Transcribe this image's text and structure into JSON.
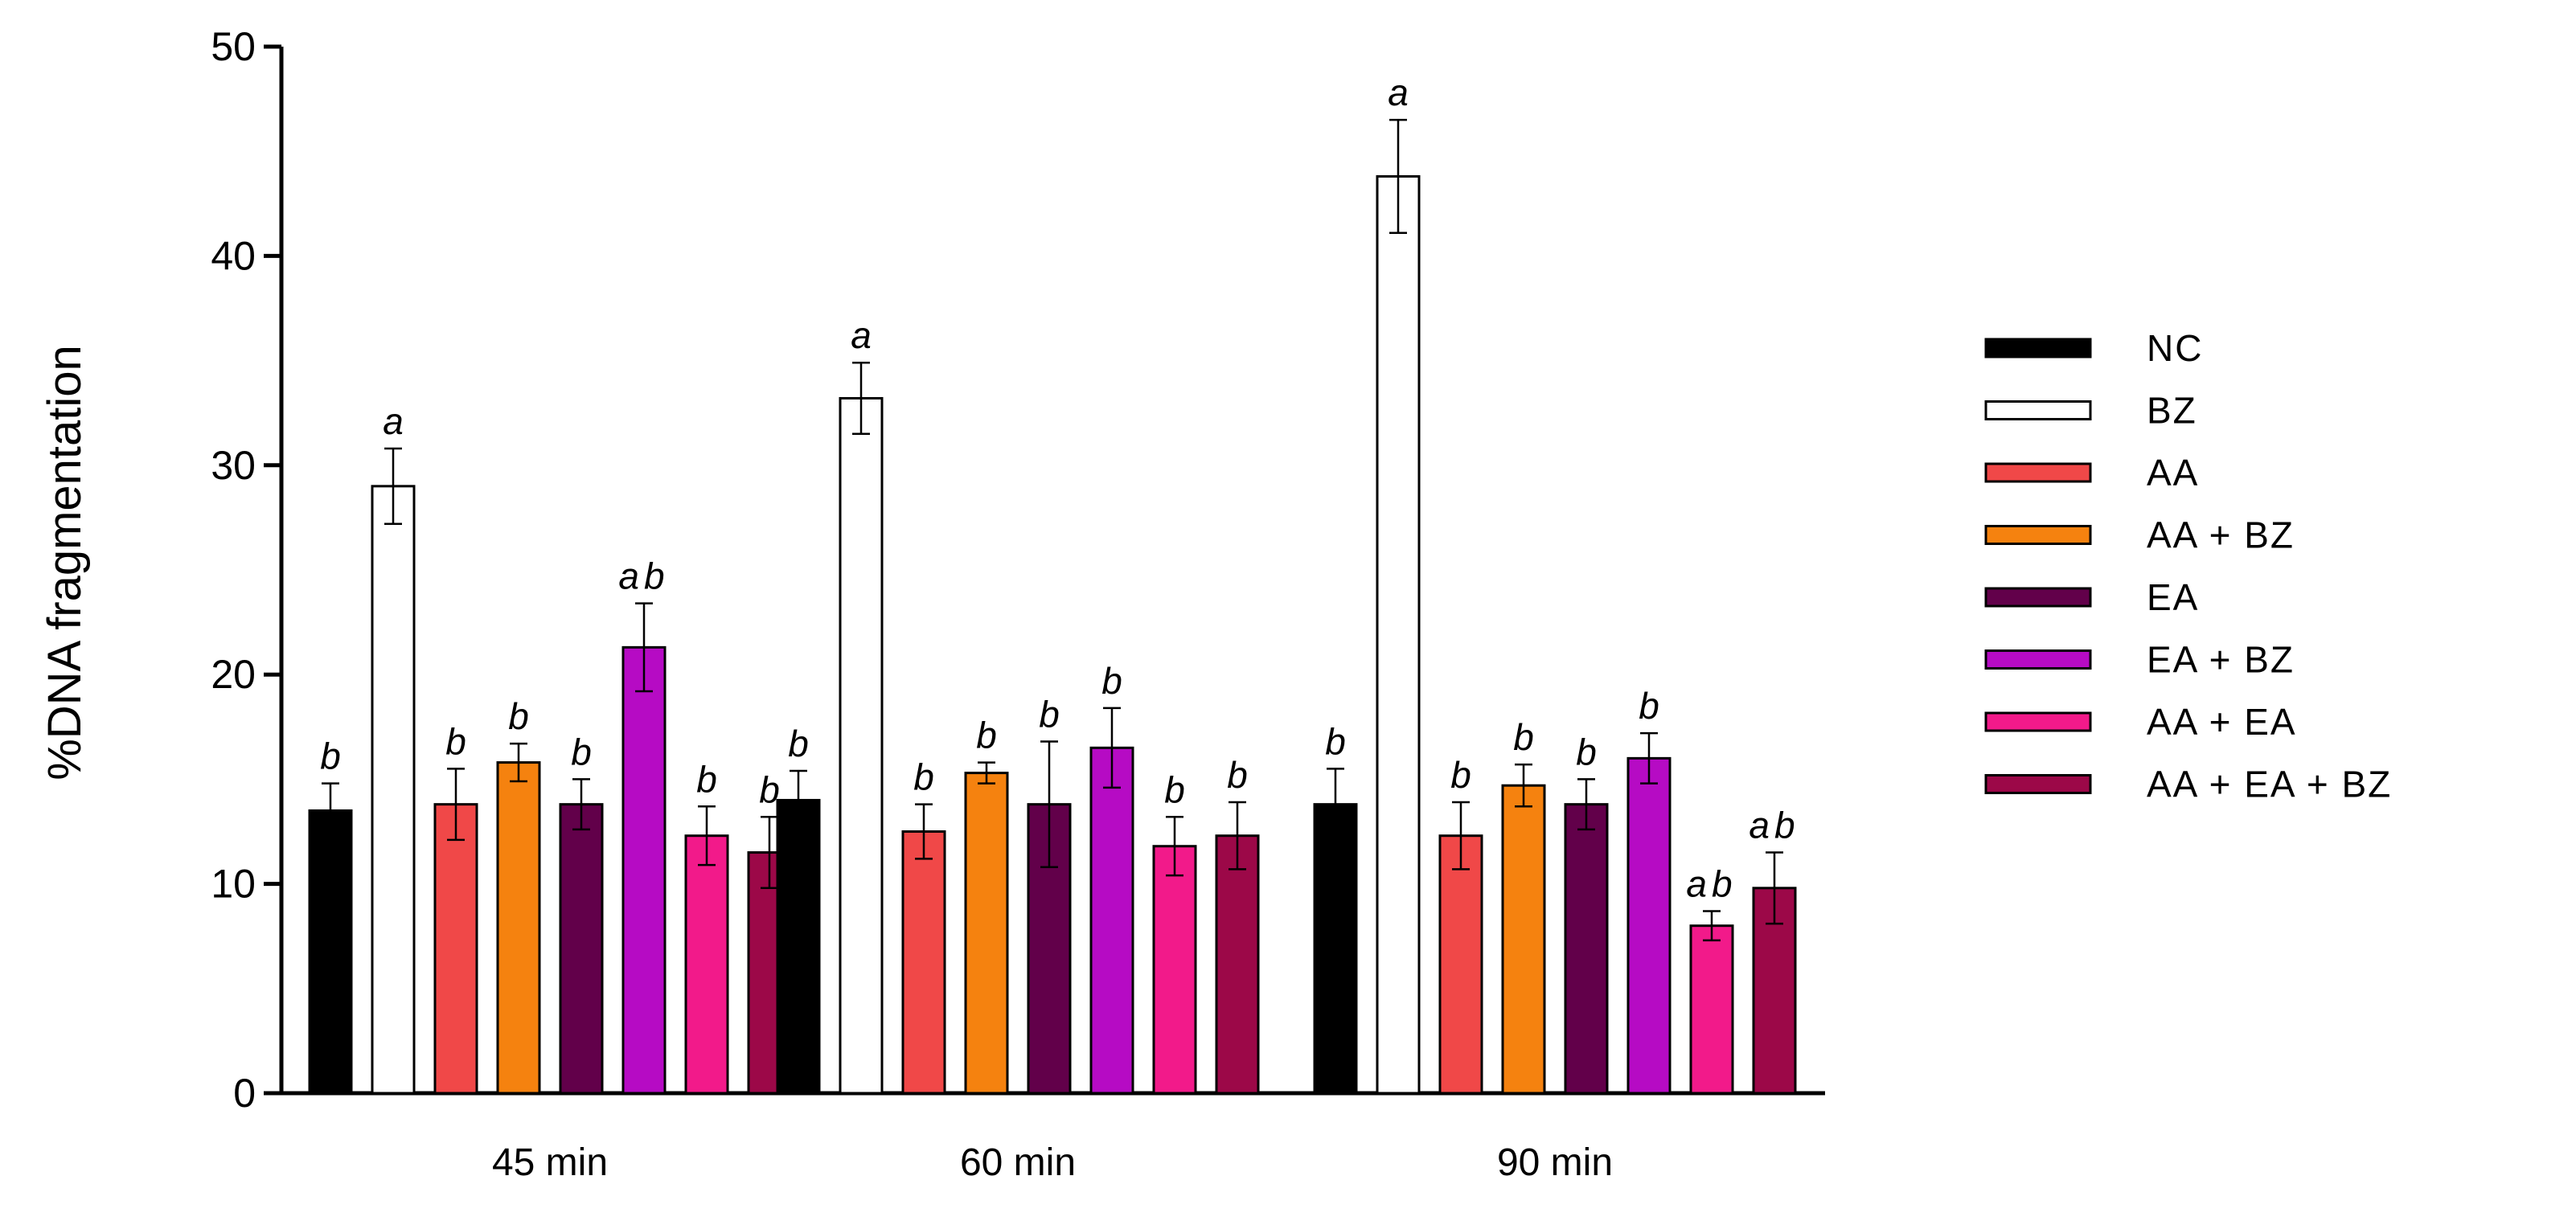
{
  "chart_data": {
    "type": "bar",
    "categories": [
      "45 min",
      "60 min",
      "90 min"
    ],
    "ylabel": "%DNA fragmentation",
    "xlabel": "",
    "ylim": [
      0,
      50
    ],
    "yticks": [
      0,
      10,
      20,
      30,
      40,
      50
    ],
    "legend_position": "right",
    "series": [
      {
        "name": "NC",
        "color": "#000000",
        "values": [
          13.5,
          14.0,
          13.8
        ],
        "errors": [
          1.3,
          1.4,
          1.7
        ],
        "letters": [
          "b",
          "b",
          "b"
        ]
      },
      {
        "name": "BZ",
        "color": "#ffffff",
        "values": [
          29.0,
          33.2,
          43.8
        ],
        "errors": [
          1.8,
          1.7,
          2.7
        ],
        "letters": [
          "a",
          "a",
          "a"
        ]
      },
      {
        "name": "AA",
        "color": "#f04848",
        "values": [
          13.8,
          12.5,
          12.3
        ],
        "errors": [
          1.7,
          1.3,
          1.6
        ],
        "letters": [
          "b",
          "b",
          "b"
        ]
      },
      {
        "name": "AA + BZ",
        "color": "#f5820f",
        "values": [
          15.8,
          15.3,
          14.7
        ],
        "errors": [
          0.9,
          0.5,
          1.0
        ],
        "letters": [
          "b",
          "b",
          "b"
        ]
      },
      {
        "name": "EA",
        "color": "#62004a",
        "values": [
          13.8,
          13.8,
          13.8
        ],
        "errors": [
          1.2,
          3.0,
          1.2
        ],
        "letters": [
          "b",
          "b",
          "b"
        ]
      },
      {
        "name": "EA + BZ",
        "color": "#b60bc4",
        "values": [
          21.3,
          16.5,
          16.0
        ],
        "errors": [
          2.1,
          1.9,
          1.2
        ],
        "letters": [
          "ab",
          "b",
          "b"
        ]
      },
      {
        "name": "AA + EA",
        "color": "#f21a8a",
        "values": [
          12.3,
          11.8,
          8.0
        ],
        "errors": [
          1.4,
          1.4,
          0.7
        ],
        "letters": [
          "b",
          "b",
          "ab"
        ]
      },
      {
        "name": "AA + EA + BZ",
        "color": "#9c0848",
        "values": [
          11.5,
          12.3,
          9.8
        ],
        "errors": [
          1.7,
          1.6,
          1.7
        ],
        "letters": [
          "b",
          "b",
          "ab"
        ]
      }
    ]
  }
}
